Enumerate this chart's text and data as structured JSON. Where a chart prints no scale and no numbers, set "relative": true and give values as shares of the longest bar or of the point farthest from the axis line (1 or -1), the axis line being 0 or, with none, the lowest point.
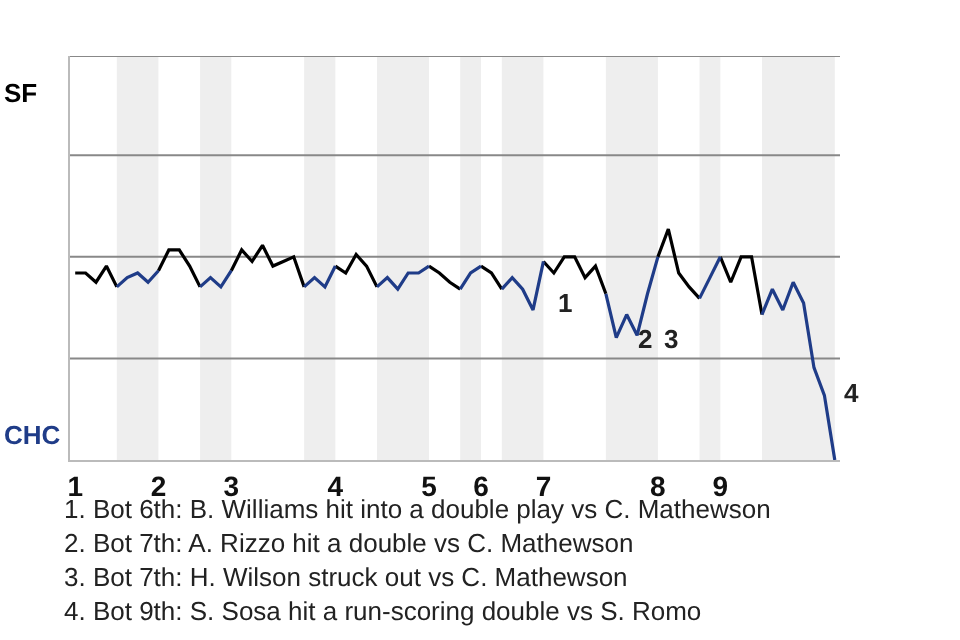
{
  "chart_data": {
    "type": "line",
    "relative": true,
    "ref_lines": [
      {
        "axis": "y",
        "value": 0.44,
        "color": "#888888"
      },
      {
        "axis": "y",
        "value": 0.88,
        "color": "#888888"
      },
      {
        "axis": "y",
        "value": 1.32,
        "color": "#888888"
      },
      {
        "axis": "y",
        "value": 1.75,
        "color": "#888888"
      }
    ],
    "categories": [
      "1",
      null,
      null,
      null,
      null,
      null,
      null,
      null,
      "2",
      null,
      null,
      null,
      null,
      null,
      null,
      "3",
      null,
      null,
      null,
      null,
      null,
      null,
      null,
      null,
      null,
      "4",
      null,
      null,
      null,
      null,
      null,
      null,
      null,
      null,
      "5",
      null,
      null,
      null,
      null,
      "6",
      null,
      null,
      null,
      null,
      null,
      "7",
      null,
      null,
      null,
      null,
      null,
      null,
      null,
      null,
      null,
      null,
      "8",
      null,
      null,
      null,
      null,
      null,
      "9",
      null,
      null,
      null,
      null,
      null,
      null,
      null,
      null,
      null,
      null,
      null
    ],
    "series": [
      {
        "color": "#000000",
        "values": [
          0.81,
          0.81,
          0.77,
          0.84,
          0.75,
          null,
          null,
          null,
          0.82,
          0.91,
          0.91,
          0.84,
          0.75,
          null,
          null,
          0.82,
          0.91,
          0.86,
          0.93,
          0.84,
          0.86,
          0.88,
          0.75,
          null,
          null,
          0.84,
          0.81,
          0.89,
          0.84,
          0.75,
          null,
          null,
          null,
          null,
          0.84,
          0.81,
          0.77,
          0.74,
          null,
          0.84,
          0.81,
          0.74,
          null,
          null,
          null,
          0.86,
          0.81,
          0.88,
          0.88,
          0.79,
          0.84,
          0.72,
          null,
          null,
          null,
          null,
          0.88,
          1,
          0.81,
          0.75,
          0.7,
          null,
          0.88,
          0.77,
          0.88,
          0.88,
          0.63,
          null,
          null,
          null,
          null,
          null,
          null,
          null
        ]
      },
      {
        "color": "#1f3c88",
        "values": [
          null,
          null,
          null,
          null,
          0.75,
          0.79,
          0.81,
          0.77,
          0.82,
          null,
          null,
          null,
          0.75,
          0.79,
          0.75,
          0.82,
          null,
          null,
          null,
          null,
          null,
          null,
          0.75,
          0.79,
          0.75,
          0.84,
          null,
          null,
          null,
          0.75,
          0.79,
          0.74,
          0.81,
          0.81,
          0.84,
          null,
          null,
          0.74,
          0.81,
          0.84,
          null,
          0.74,
          0.79,
          0.74,
          0.65,
          0.86,
          null,
          null,
          null,
          null,
          null,
          0.72,
          0.53,
          0.63,
          0.54,
          0.72,
          0.88,
          null,
          null,
          null,
          0.7,
          0.79,
          0.88,
          null,
          null,
          null,
          0.63,
          0.74,
          0.65,
          0.77,
          0.68,
          0.4,
          0.28,
          0
        ]
      }
    ],
    "annotations": [
      "SF",
      "CHC",
      "1",
      "2",
      "3",
      "4",
      "1. Bot 6th: B. Williams hit into a double play vs C. Mathewson",
      "2. Bot 7th: A. Rizzo hit a double vs C. Mathewson",
      "3. Bot 7th: H. Wilson struck out vs C. Mathewson",
      "4. Bot 9th: S. Sosa hit a run-scoring double vs S. Romo"
    ]
  }
}
